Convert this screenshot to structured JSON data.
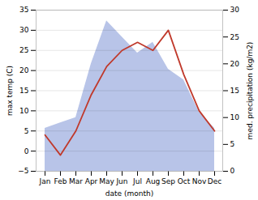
{
  "chart_data": {
    "type": "line",
    "xlabel": "date (month)",
    "ylabel": "max temp (C)",
    "y2label": "med. precipitation (kg/m2)",
    "categories": [
      "Jan",
      "Feb",
      "Mar",
      "Apr",
      "May",
      "Jun",
      "Jul",
      "Aug",
      "Sep",
      "Oct",
      "Nov",
      "Dec"
    ],
    "series": [
      {
        "type": "area",
        "axis": "y2",
        "color": "#b8c4e8",
        "values": [
          8,
          9,
          10,
          20,
          28,
          25,
          22,
          24,
          19,
          17,
          11,
          8
        ]
      },
      {
        "type": "line",
        "color": "#c0392b",
        "values": [
          4,
          -1,
          5,
          14,
          21,
          25,
          27,
          25,
          30,
          19,
          10,
          5
        ]
      }
    ],
    "ylim": [
      -5,
      35
    ],
    "yticks": [
      -5,
      0,
      5,
      10,
      15,
      20,
      25,
      30,
      35
    ],
    "y2lim": [
      0,
      30
    ],
    "y2ticks": [
      0,
      5,
      10,
      15,
      20,
      25,
      30
    ],
    "grid": true
  }
}
